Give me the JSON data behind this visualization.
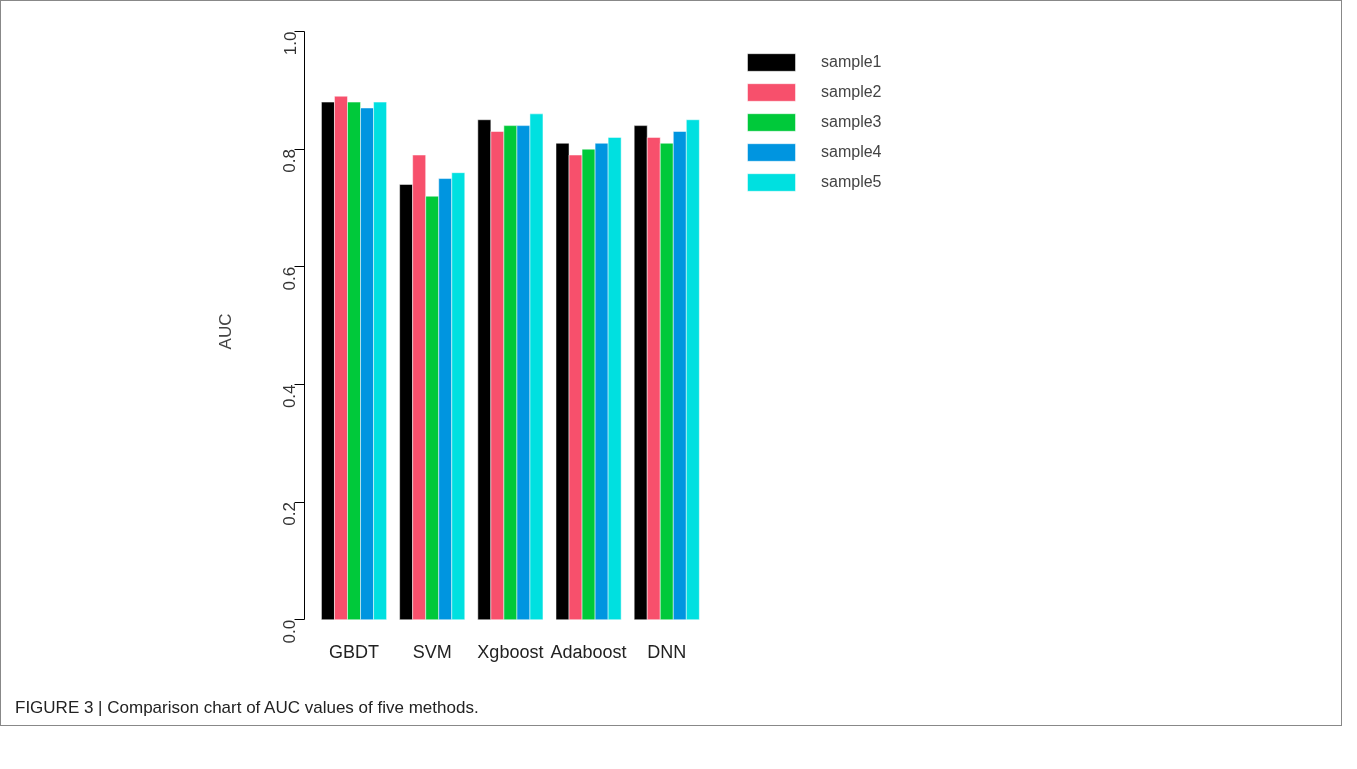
{
  "chart_data": {
    "type": "bar",
    "ylabel": "AUC",
    "categories": [
      "GBDT",
      "SVM",
      "Xgboost",
      "Adaboost",
      "DNN"
    ],
    "series": [
      {
        "name": "sample1",
        "color": "#000000",
        "values": [
          0.88,
          0.74,
          0.85,
          0.81,
          0.84
        ]
      },
      {
        "name": "sample2",
        "color": "#f7506c",
        "values": [
          0.89,
          0.79,
          0.83,
          0.79,
          0.82
        ]
      },
      {
        "name": "sample3",
        "color": "#00c93a",
        "values": [
          0.88,
          0.72,
          0.84,
          0.8,
          0.81
        ]
      },
      {
        "name": "sample4",
        "color": "#0095e0",
        "values": [
          0.87,
          0.75,
          0.84,
          0.81,
          0.83
        ]
      },
      {
        "name": "sample5",
        "color": "#00e0e0",
        "values": [
          0.88,
          0.76,
          0.86,
          0.82,
          0.85
        ]
      }
    ],
    "ylim": [
      0,
      1.0
    ],
    "yticks": [
      {
        "value": 0,
        "label": "0.0"
      },
      0.2,
      0.4,
      0.6,
      0.8,
      {
        "value": 1.0,
        "label": "1.0"
      }
    ],
    "grid": false,
    "legend": "right",
    "annotations": [
      "FIGURE 3 | Comparison chart of AUC values of five methods."
    ]
  }
}
